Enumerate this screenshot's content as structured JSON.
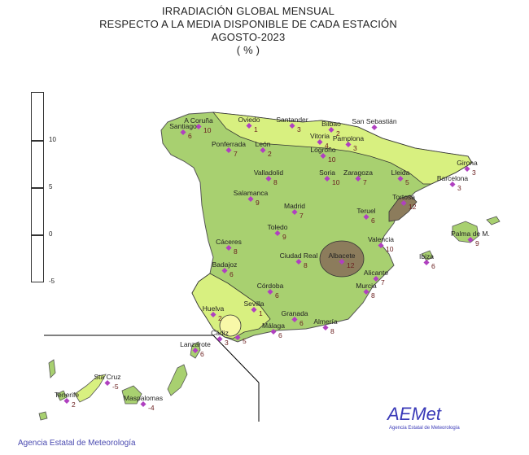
{
  "title": {
    "line1": "IRRADIACIÓN GLOBAL MENSUAL",
    "line2": "RESPECTO A LA MEDIA DISPONIBLE DE CADA ESTACIÓN",
    "line3": "AGOSTO-2023",
    "line4": "( % )"
  },
  "legend": {
    "labels": [
      "10",
      "5",
      "0",
      "-5"
    ],
    "colors": [
      "#8c7c5c",
      "#a8d070",
      "#d8f080",
      "#f8f8a8"
    ]
  },
  "colors": {
    "low": "#f8f8a8",
    "mid": "#d8f080",
    "main": "#a8d070",
    "high": "#8c7c5c",
    "station_dot": "#b040c0",
    "value_text": "#6b2020"
  },
  "stations": [
    {
      "name": "A Coruña",
      "value": "10"
    },
    {
      "name": "Santiago",
      "value": "6"
    },
    {
      "name": "Oviedo",
      "value": "1"
    },
    {
      "name": "Santander",
      "value": "3"
    },
    {
      "name": "Bilbao",
      "value": "2"
    },
    {
      "name": "San Sebastián",
      "value": ""
    },
    {
      "name": "Vitoria",
      "value": "4"
    },
    {
      "name": "Pamplona",
      "value": "3"
    },
    {
      "name": "Logroño",
      "value": "10"
    },
    {
      "name": "Ponferrada",
      "value": "7"
    },
    {
      "name": "León",
      "value": "2"
    },
    {
      "name": "Girona",
      "value": "3"
    },
    {
      "name": "Barcelona",
      "value": "3"
    },
    {
      "name": "Lleida",
      "value": "5"
    },
    {
      "name": "Zaragoza",
      "value": "7"
    },
    {
      "name": "Soria",
      "value": "10"
    },
    {
      "name": "Valladolid",
      "value": "8"
    },
    {
      "name": "Salamanca",
      "value": "9"
    },
    {
      "name": "Tortosa",
      "value": "12"
    },
    {
      "name": "Madrid",
      "value": "7"
    },
    {
      "name": "Teruel",
      "value": "6"
    },
    {
      "name": "Toledo",
      "value": "9"
    },
    {
      "name": "Palma de M.",
      "value": "9"
    },
    {
      "name": "Cáceres",
      "value": "8"
    },
    {
      "name": "Valencia",
      "value": "10"
    },
    {
      "name": "Ibiza",
      "value": "6"
    },
    {
      "name": "Ciudad Real",
      "value": "8"
    },
    {
      "name": "Albacete",
      "value": "12"
    },
    {
      "name": "Badajoz",
      "value": "6"
    },
    {
      "name": "Alicante",
      "value": "7"
    },
    {
      "name": "Córdoba",
      "value": "6"
    },
    {
      "name": "Murcia",
      "value": "8"
    },
    {
      "name": "Sevilla",
      "value": "1"
    },
    {
      "name": "Huelva",
      "value": "2"
    },
    {
      "name": "Granada",
      "value": "6"
    },
    {
      "name": "Almería",
      "value": "8"
    },
    {
      "name": "Cádiz",
      "value": "3"
    },
    {
      "name": "Málaga",
      "value": "6"
    },
    {
      "name": "",
      "value": "5"
    },
    {
      "name": "Lanzarote",
      "value": "6"
    },
    {
      "name": "Sta Cruz",
      "value": "-5"
    },
    {
      "name": "Tenerife",
      "value": "2"
    },
    {
      "name": "Maspalomas",
      "value": "-4"
    }
  ],
  "footer": "Agencia Estatal de Meteorología",
  "logo": {
    "text": "AEMet",
    "sub": "Agencia Estatal de Meteorología"
  }
}
